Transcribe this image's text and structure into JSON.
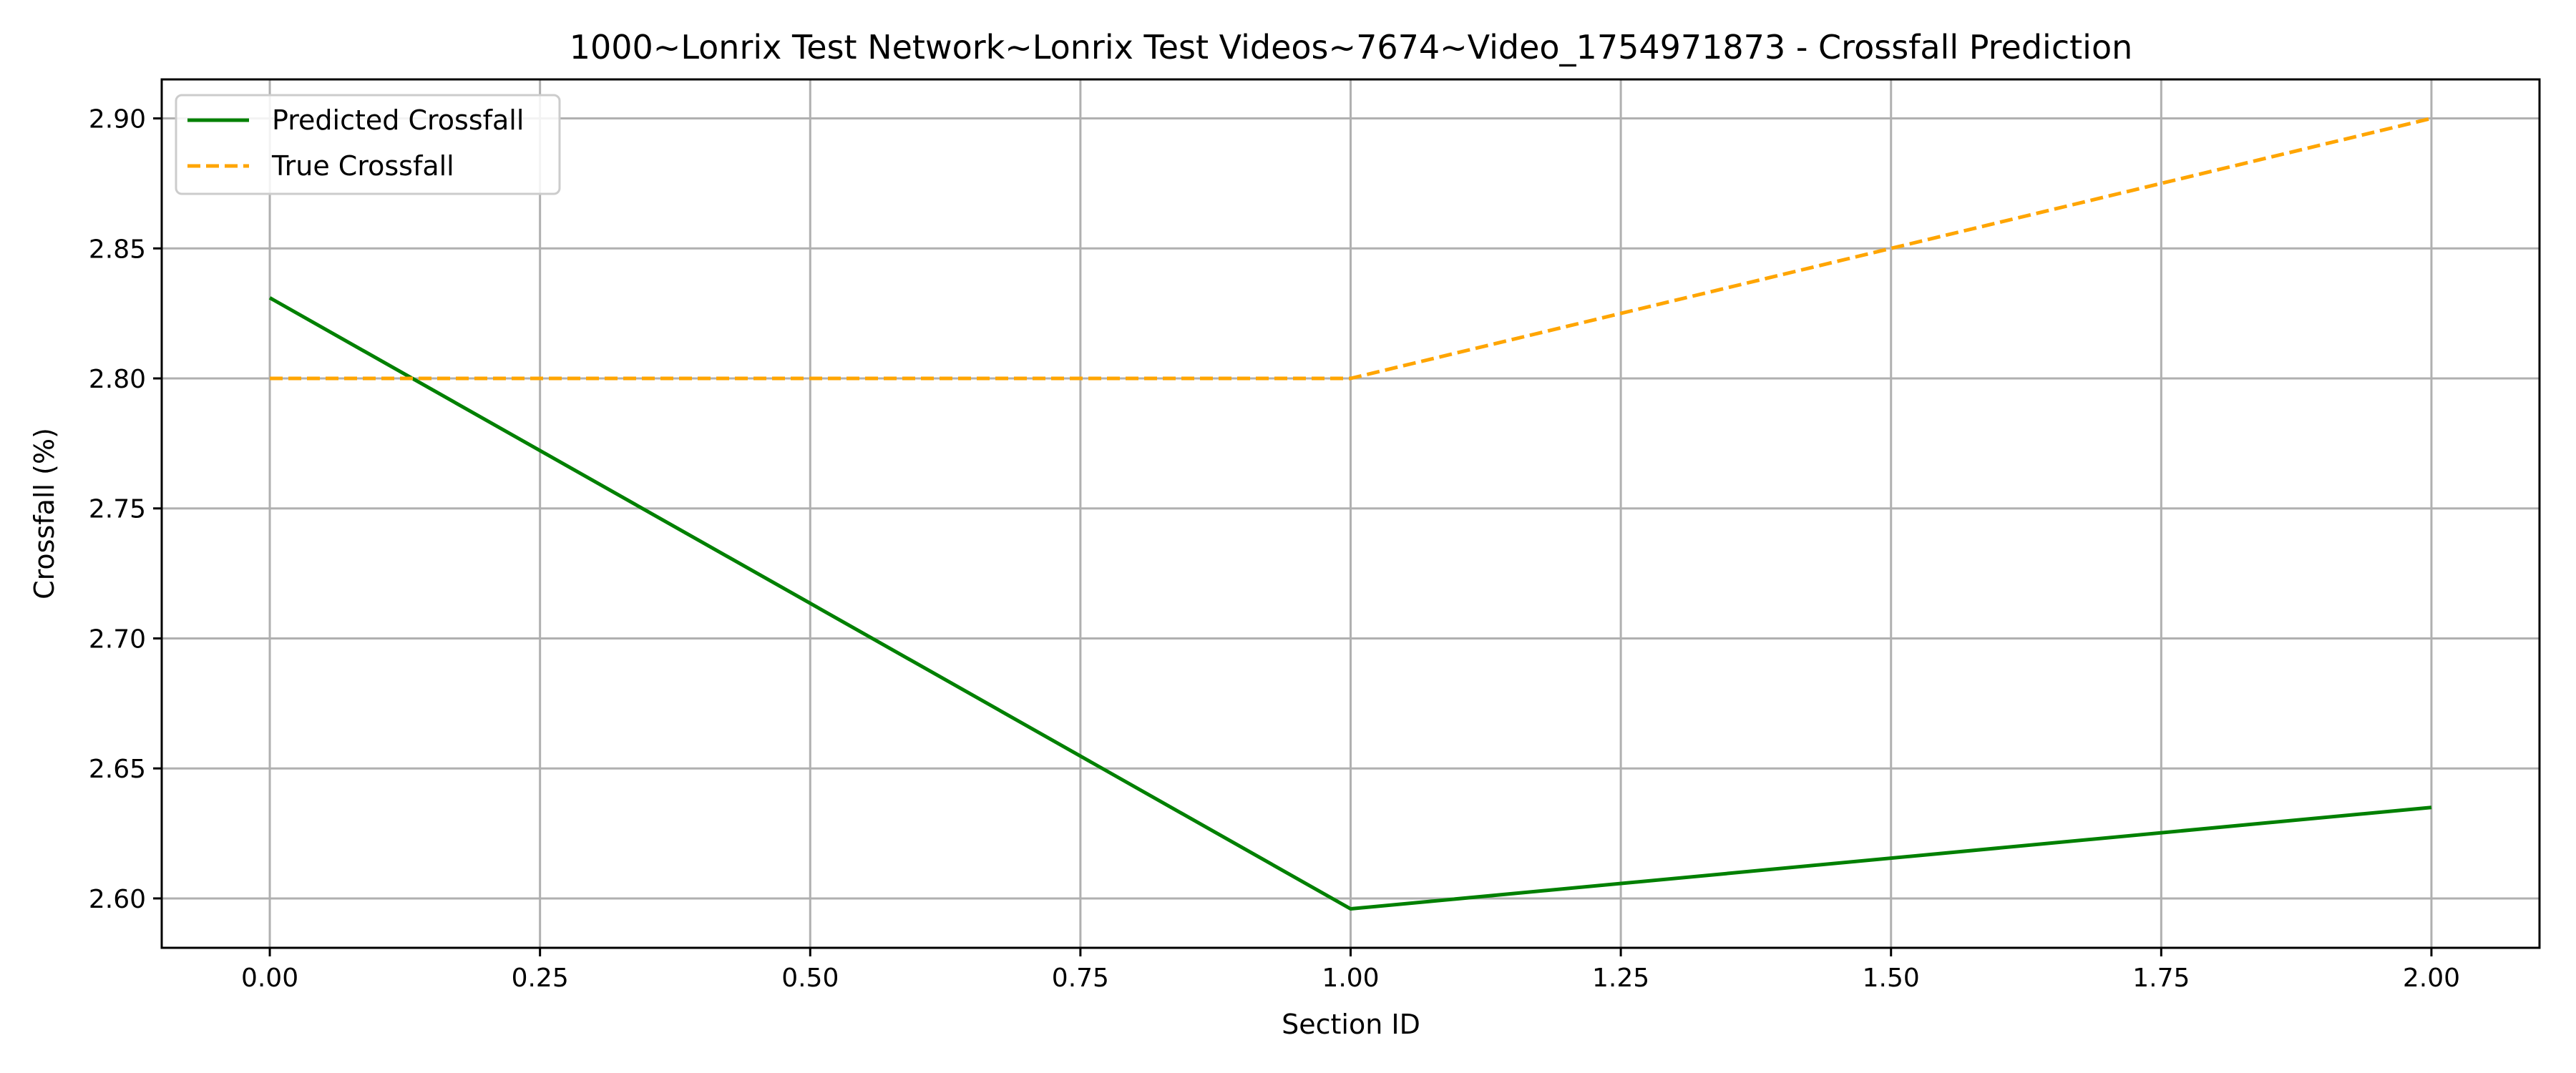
{
  "chart_data": {
    "type": "line",
    "title": "1000~Lonrix Test Network~Lonrix Test Videos~7674~Video_1754971873 - Crossfall Prediction",
    "xlabel": "Section ID",
    "ylabel": "Crossfall (%)",
    "xlim": [
      -0.1,
      2.1
    ],
    "ylim": [
      2.581,
      2.915
    ],
    "x_ticks": [
      0.0,
      0.25,
      0.5,
      0.75,
      1.0,
      1.25,
      1.5,
      1.75,
      2.0
    ],
    "x_tick_labels": [
      "0.00",
      "0.25",
      "0.50",
      "0.75",
      "1.00",
      "1.25",
      "1.50",
      "1.75",
      "2.00"
    ],
    "y_ticks": [
      2.6,
      2.65,
      2.7,
      2.75,
      2.8,
      2.85,
      2.9
    ],
    "y_tick_labels": [
      "2.60",
      "2.65",
      "2.70",
      "2.75",
      "2.80",
      "2.85",
      "2.90"
    ],
    "grid": true,
    "legend_position": "top-left",
    "series": [
      {
        "name": "Predicted Crossfall",
        "x": [
          0,
          1,
          2
        ],
        "y": [
          2.831,
          2.596,
          2.635
        ],
        "color": "#008000",
        "style": "solid"
      },
      {
        "name": "True Crossfall",
        "x": [
          0,
          1,
          2
        ],
        "y": [
          2.8,
          2.8,
          2.9
        ],
        "color": "#ffa500",
        "style": "dashed"
      }
    ]
  }
}
